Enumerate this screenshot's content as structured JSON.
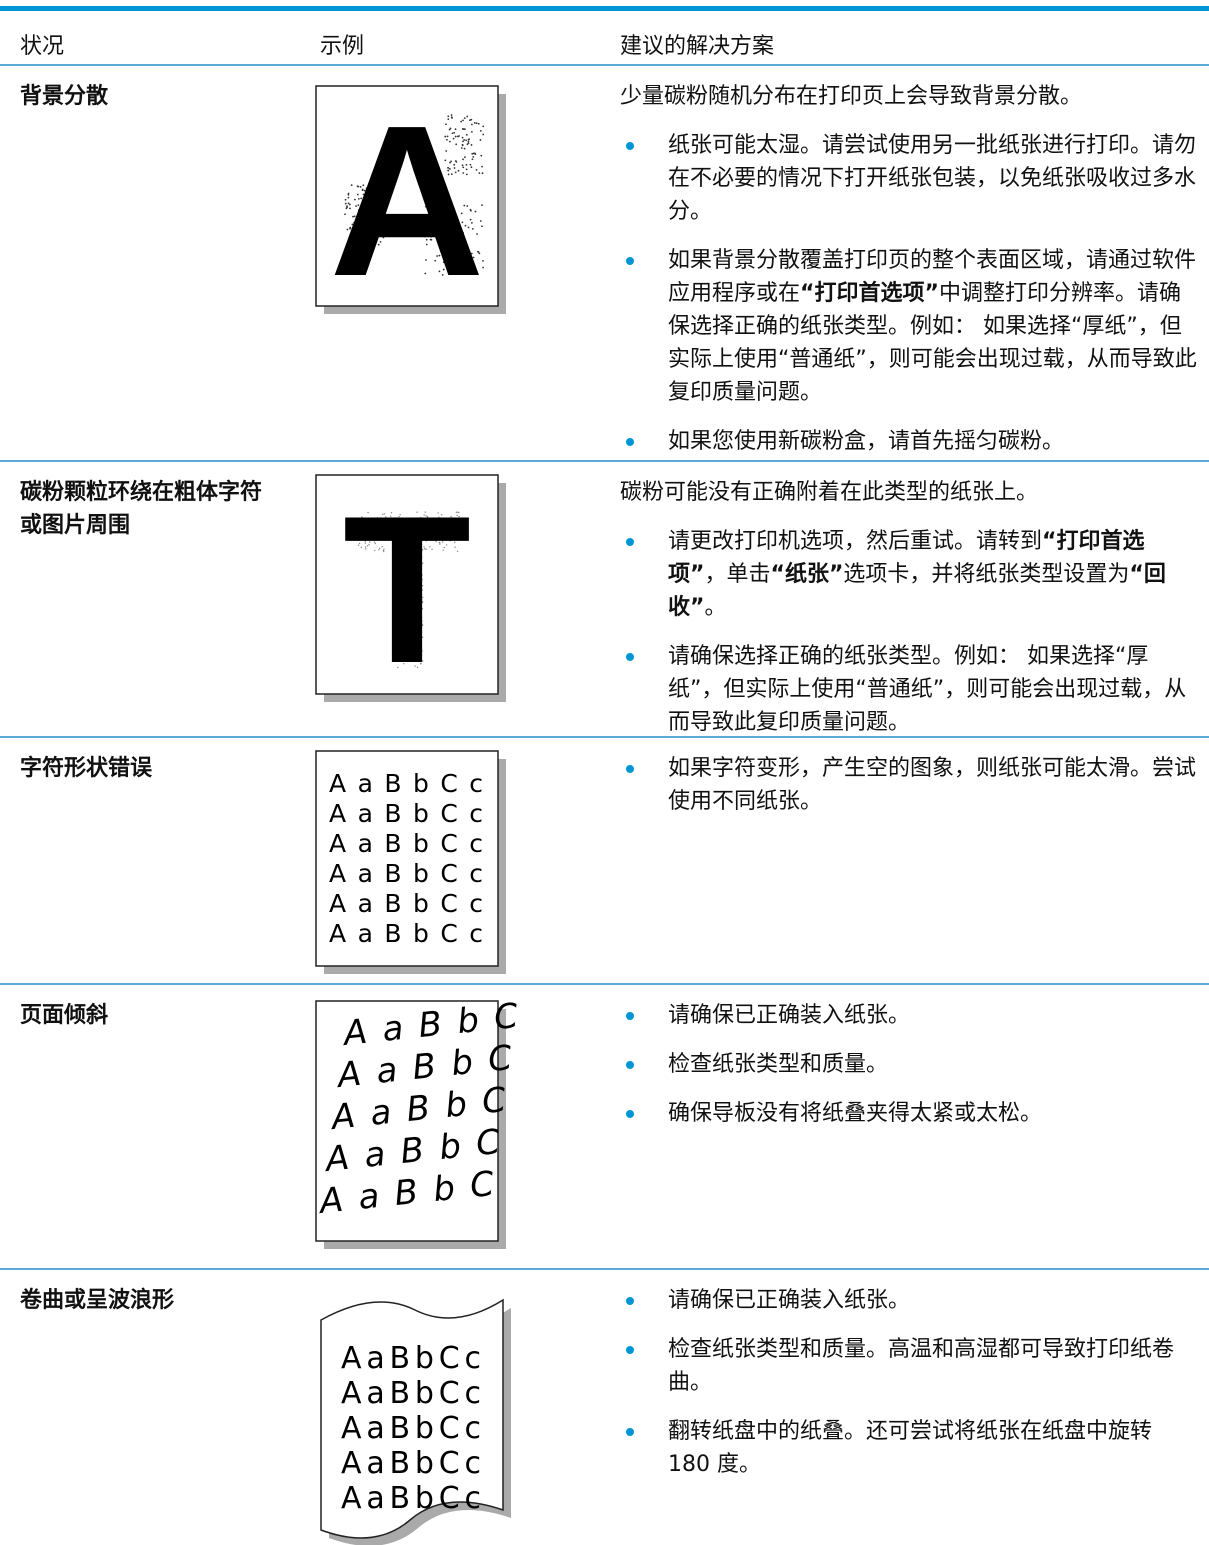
{
  "header": {
    "columns": [
      "状况",
      "示例",
      "建议的解决方案"
    ]
  },
  "table": {
    "rows": [
      {
        "condition": "背景分散",
        "example": "A",
        "intro": "少量碳粉随机分布在打印页上会导致背景分散。",
        "bullets": [
          [
            "纸张可能太湿。请尝试使用另一批纸张进行打印。请勿在不必要的情况下打开纸张包装，以免纸张吸收过多水分。"
          ],
          [
            "如果背景分散覆盖打印页的整个表面区域，请通过软件应用程序或在",
            "“打印首选项”",
            "中调整打印分辨率。请确保选择正确的纸张类型。例如： 如果选择“厚纸”，但实际上使用“普通纸”，则可能会出现过载，从而导致此复印质量问题。"
          ],
          [
            "如果您使用新碳粉盒，请首先摇匀碳粉。"
          ]
        ]
      },
      {
        "condition": "碳粉颗粒环绕在粗体字符或图片周围",
        "example": "T",
        "intro": "碳粉可能没有正确附着在此类型的纸张上。",
        "bullets": [
          [
            "请更改打印机选项，然后重试。请转到",
            "“打印首选项”",
            "，单击",
            "“纸张”",
            "选项卡，并将纸张类型设置为",
            "“回收”",
            "。"
          ],
          [
            "请确保选择正确的纸张类型。例如： 如果选择“厚纸”，但实际上使用“普通纸”，则可能会出现过载，从而导致此复印质量问题。"
          ]
        ]
      },
      {
        "condition": "字符形状错误",
        "example": "AaBbCc",
        "bullets": [
          [
            "如果字符变形，产生空的图象，则纸张可能太滑。尝试使用不同纸张。"
          ]
        ]
      },
      {
        "condition": "页面倾斜",
        "example": "A a B b C",
        "bullets": [
          [
            "请确保已正确装入纸张。"
          ],
          [
            "检查纸张类型和质量。"
          ],
          [
            "确保导板没有将纸叠夹得太紧或太松。"
          ]
        ]
      },
      {
        "condition": "卷曲或呈波浪形",
        "example": "AaBbCc",
        "bullets": [
          [
            "请确保已正确装入纸张。"
          ],
          [
            "检查纸张类型和质量。高温和高湿都可导致打印纸卷曲。"
          ],
          [
            "翻转纸盘中的纸叠。还可尝试将纸张在纸盘中旋转 180 度。"
          ]
        ]
      }
    ]
  }
}
